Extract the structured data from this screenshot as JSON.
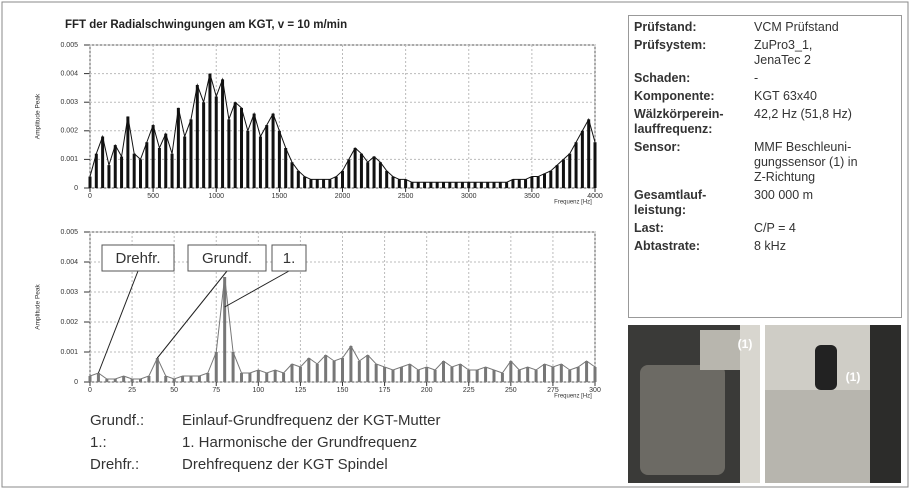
{
  "chart_data": [
    {
      "type": "line",
      "title": "FFT der Radialschwingungen am KGT, v = 10 m/min",
      "y_label": "Amplitude Peak",
      "x_label": "Frequenz [Hz]",
      "color": "#111111",
      "grid": true,
      "xlim": [
        0,
        4000
      ],
      "xticks": [
        0,
        500,
        1000,
        1500,
        2000,
        2500,
        3000,
        3500,
        4000
      ],
      "ylim": [
        0,
        0.005
      ],
      "yticks": [
        0,
        0.001,
        0.002,
        0.003,
        0.004,
        0.005
      ],
      "x": [
        0,
        50,
        100,
        150,
        200,
        250,
        300,
        350,
        400,
        450,
        500,
        550,
        600,
        650,
        700,
        750,
        800,
        850,
        900,
        950,
        1000,
        1050,
        1100,
        1150,
        1200,
        1250,
        1300,
        1350,
        1400,
        1450,
        1500,
        1550,
        1600,
        1650,
        1700,
        1750,
        1800,
        1850,
        1900,
        1950,
        2000,
        2050,
        2100,
        2150,
        2200,
        2250,
        2300,
        2350,
        2400,
        2450,
        2500,
        2550,
        2600,
        2650,
        2700,
        2750,
        2800,
        2850,
        2900,
        2950,
        3000,
        3050,
        3100,
        3150,
        3200,
        3250,
        3300,
        3350,
        3400,
        3450,
        3500,
        3550,
        3600,
        3650,
        3700,
        3750,
        3800,
        3850,
        3900,
        3950,
        4000
      ],
      "values": [
        0.0004,
        0.0012,
        0.0018,
        0.0008,
        0.0015,
        0.0011,
        0.0025,
        0.0012,
        0.001,
        0.0016,
        0.0022,
        0.0014,
        0.0019,
        0.0012,
        0.0028,
        0.0018,
        0.0024,
        0.0036,
        0.003,
        0.004,
        0.0032,
        0.0038,
        0.0024,
        0.003,
        0.0028,
        0.002,
        0.0026,
        0.0018,
        0.0022,
        0.0026,
        0.002,
        0.0014,
        0.0009,
        0.0006,
        0.0004,
        0.0003,
        0.0003,
        0.0003,
        0.0003,
        0.0004,
        0.0006,
        0.001,
        0.0014,
        0.0012,
        0.0009,
        0.0011,
        0.0009,
        0.0006,
        0.0004,
        0.0003,
        0.0003,
        0.0002,
        0.0002,
        0.0002,
        0.0002,
        0.0002,
        0.0002,
        0.0002,
        0.0002,
        0.0002,
        0.0002,
        0.0002,
        0.0002,
        0.0002,
        0.0002,
        0.0002,
        0.0002,
        0.0003,
        0.0003,
        0.0003,
        0.0004,
        0.0004,
        0.0005,
        0.0006,
        0.0008,
        0.001,
        0.0012,
        0.0016,
        0.002,
        0.0024,
        0.0016
      ]
    },
    {
      "type": "line",
      "y_label": "Amplitude Peak",
      "x_label": "Frequenz [Hz]",
      "color": "#777777",
      "grid": true,
      "xlim": [
        0,
        300
      ],
      "xticks": [
        0,
        25,
        50,
        75,
        100,
        125,
        150,
        175,
        200,
        225,
        250,
        275,
        300
      ],
      "ylim": [
        0,
        0.005
      ],
      "yticks": [
        0,
        0.001,
        0.002,
        0.003,
        0.004,
        0.005
      ],
      "x": [
        0,
        5,
        10,
        15,
        20,
        25,
        30,
        35,
        40,
        45,
        50,
        55,
        60,
        65,
        70,
        75,
        80,
        85,
        90,
        95,
        100,
        105,
        110,
        115,
        120,
        125,
        130,
        135,
        140,
        145,
        150,
        155,
        160,
        165,
        170,
        175,
        180,
        185,
        190,
        195,
        200,
        205,
        210,
        215,
        220,
        225,
        230,
        235,
        240,
        245,
        250,
        255,
        260,
        265,
        270,
        275,
        280,
        285,
        290,
        295,
        300
      ],
      "values": [
        0.0002,
        0.0003,
        0.0001,
        0.0001,
        0.0002,
        0.0001,
        0.0001,
        0.0002,
        0.0008,
        0.0002,
        0.0001,
        0.0002,
        0.0002,
        0.0002,
        0.0003,
        0.001,
        0.0035,
        0.001,
        0.0003,
        0.0003,
        0.0004,
        0.0003,
        0.0004,
        0.0003,
        0.0006,
        0.0005,
        0.0008,
        0.0006,
        0.0009,
        0.0007,
        0.0008,
        0.0012,
        0.0007,
        0.0009,
        0.0006,
        0.0005,
        0.0004,
        0.0005,
        0.0006,
        0.0004,
        0.0005,
        0.0004,
        0.0007,
        0.0005,
        0.0006,
        0.0004,
        0.0004,
        0.0005,
        0.0004,
        0.0003,
        0.0007,
        0.0004,
        0.0005,
        0.0004,
        0.0006,
        0.0005,
        0.0006,
        0.0004,
        0.0005,
        0.0007,
        0.0005
      ],
      "annotations": [
        {
          "text": "Drehfr.",
          "x": 5,
          "y": 0.0003
        },
        {
          "text": "Grundf.",
          "x": 40,
          "y": 0.0008
        },
        {
          "text": "1.",
          "x": 80,
          "y": 0.0025
        }
      ]
    }
  ],
  "legend": {
    "rows": [
      [
        "Grundf.:",
        "Einlauf-Grundfrequenz der KGT-Mutter"
      ],
      [
        "1.:",
        "1. Harmonische der Grundfrequenz"
      ],
      [
        "Drehfr.:",
        "Drehfrequenz der KGT Spindel"
      ]
    ]
  },
  "info_table": {
    "rows": [
      [
        "Prüfstand:",
        "VCM Prüfstand"
      ],
      [
        "Prüfsystem:",
        "ZuPro3_1,\nJenaTec 2"
      ],
      [
        "Schaden:",
        "-"
      ],
      [
        "Komponente:",
        "KGT 63x40"
      ],
      [
        "Wälzkörperein-\nlauffrequenz:",
        "42,2 Hz (51,8 Hz)"
      ],
      [
        "Sensor:",
        "MMF Beschleuni-\ngungssensor (1) in\nZ-Richtung"
      ],
      [
        "Gesamtlauf-\nleistung:",
        "300 000 m"
      ],
      [
        "Last:",
        "C/P = 4"
      ],
      [
        "Abtastrate:",
        "8 kHz"
      ]
    ]
  },
  "photos": [
    {
      "label": "(1)"
    },
    {
      "label": "(1)"
    }
  ]
}
